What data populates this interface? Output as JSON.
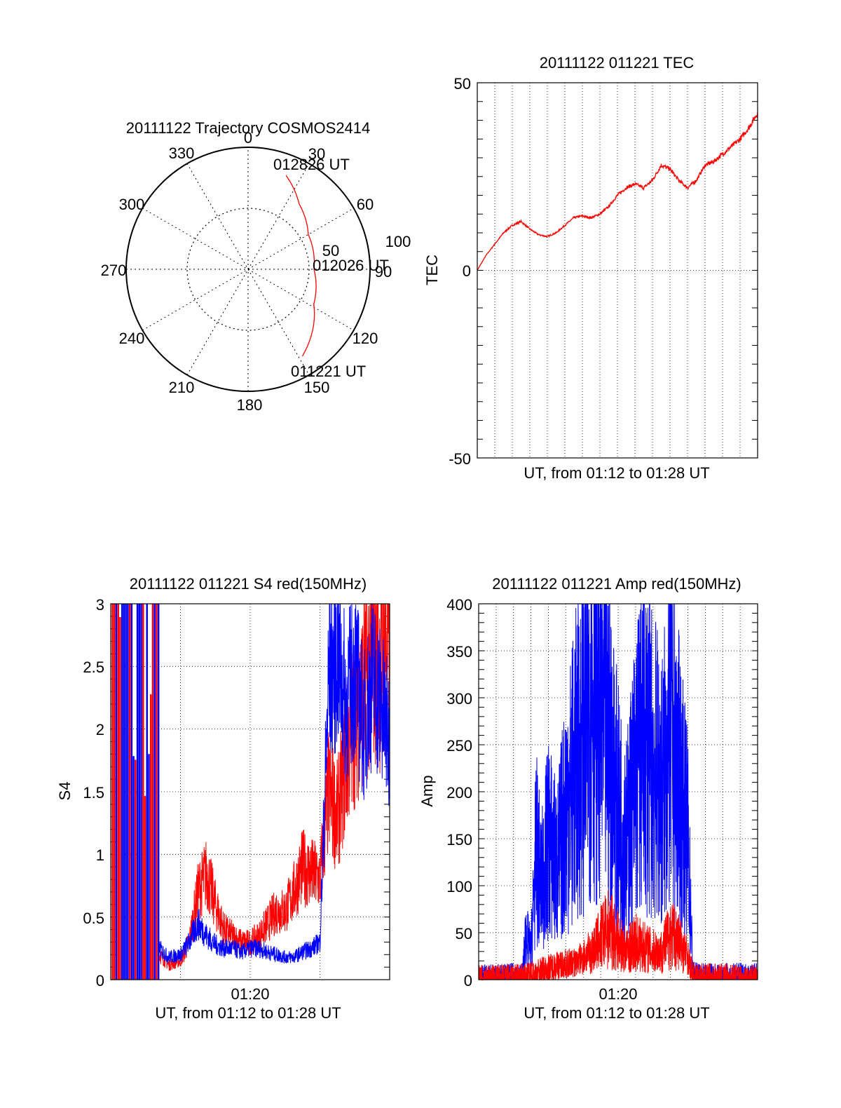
{
  "colors": {
    "red": "#ff0000",
    "blue": "#0000ff",
    "axis": "#000000",
    "grid": "#000000"
  },
  "chart_data": [
    {
      "id": "polar",
      "type": "polar-trajectory",
      "title": "20111122 Trajectory COSMOS2414",
      "azimuth_labels": [
        "0",
        "30",
        "60",
        "90",
        "120",
        "150",
        "180",
        "210",
        "240",
        "270",
        "300",
        "330"
      ],
      "radial_labels": [
        "50",
        "100"
      ],
      "radial_range": [
        0,
        100
      ],
      "grid": true,
      "annotations": [
        "012826 UT",
        "012026 UT",
        "011221 UT"
      ],
      "trajectory": [
        {
          "az": 22,
          "r": 83
        },
        {
          "az": 38,
          "r": 68
        },
        {
          "az": 60,
          "r": 57
        },
        {
          "az": 90,
          "r": 54
        },
        {
          "az": 118,
          "r": 61
        },
        {
          "az": 148,
          "r": 84
        }
      ]
    },
    {
      "id": "tec",
      "type": "line",
      "title": "20111122 011221 TEC",
      "xlabel": "UT, from 01:12 to 01:28 UT",
      "ylabel": "TEC",
      "xlim": [
        0,
        16
      ],
      "ylim": [
        -50,
        50
      ],
      "yticks": [
        "-50",
        "0",
        "50"
      ],
      "grid": true,
      "series": [
        {
          "color": "red",
          "x": [
            0,
            0.5,
            1.0,
            1.5,
            2.0,
            2.5,
            3.0,
            3.5,
            4.0,
            4.5,
            5.0,
            5.5,
            6.0,
            6.5,
            7.0,
            7.5,
            8.0,
            8.5,
            9.0,
            9.5,
            10.0,
            10.5,
            11.0,
            11.5,
            12.0,
            12.5,
            13.0,
            13.5,
            14.0,
            14.5,
            15.0,
            15.5,
            16.0
          ],
          "y": [
            0,
            4,
            7,
            10,
            12,
            13,
            11,
            9.5,
            9,
            10,
            12,
            14,
            14.5,
            14,
            15,
            17,
            20,
            22,
            23,
            22,
            24,
            28,
            27,
            24,
            22,
            24,
            28,
            29,
            31,
            33,
            35,
            38,
            42
          ]
        }
      ]
    },
    {
      "id": "s4",
      "type": "line",
      "title": "20111122 011221 S4 red(150MHz)",
      "xlabel": "UT, from 01:12 to 01:28 UT",
      "ylabel": "S4",
      "xlim": [
        0,
        16
      ],
      "ylim": [
        0,
        3
      ],
      "yticks": [
        "0",
        "0.5",
        "1",
        "1.5",
        "2",
        "2.5",
        "3"
      ],
      "xtick_labels": [
        {
          "x": 8,
          "label": "01:20"
        }
      ],
      "grid": true,
      "series": [
        {
          "color": "red",
          "x": [
            2.8,
            3.3,
            4.0,
            4.5,
            5.0,
            5.5,
            6.0,
            6.5,
            7.0,
            7.5,
            8.0,
            8.5,
            9.0,
            9.5,
            10.0,
            10.5,
            11.0,
            11.5,
            12.0,
            12.5,
            13.0,
            13.5,
            14.0,
            14.5,
            15.0,
            15.5,
            16.0
          ],
          "y": [
            0.2,
            0.12,
            0.15,
            0.3,
            0.7,
            0.85,
            0.6,
            0.4,
            0.35,
            0.3,
            0.3,
            0.35,
            0.45,
            0.55,
            0.55,
            0.7,
            0.9,
            0.85,
            0.8,
            1.5,
            1.3,
            1.75,
            2.1,
            2.3,
            2.6,
            2.5,
            2.8
          ]
        },
        {
          "color": "blue",
          "x": [
            2.8,
            3.3,
            4.0,
            4.5,
            5.0,
            5.5,
            6.0,
            6.5,
            7.0,
            7.5,
            8.0,
            8.5,
            9.0,
            9.5,
            10.0,
            10.5,
            11.0,
            11.5,
            12.0,
            12.5,
            13.0,
            13.5,
            14.0,
            14.5,
            15.0,
            15.5,
            16.0
          ],
          "y": [
            0.25,
            0.18,
            0.2,
            0.3,
            0.45,
            0.35,
            0.28,
            0.25,
            0.25,
            0.22,
            0.25,
            0.25,
            0.22,
            0.2,
            0.18,
            0.18,
            0.22,
            0.25,
            0.3,
            2.4,
            2.6,
            2.2,
            2.5,
            2.0,
            2.4,
            2.2,
            1.9
          ]
        }
      ]
    },
    {
      "id": "amp",
      "type": "line",
      "title": "20111122 011221 Amp red(150MHz)",
      "xlabel": "UT, from 01:12 to 01:28 UT",
      "ylabel": "Amp",
      "xlim": [
        0,
        16
      ],
      "ylim": [
        0,
        400
      ],
      "yticks": [
        "0",
        "50",
        "100",
        "150",
        "200",
        "250",
        "300",
        "350",
        "400"
      ],
      "xtick_labels": [
        {
          "x": 8,
          "label": "01:20"
        }
      ],
      "grid": true,
      "series": [
        {
          "color": "blue",
          "x": [
            0,
            2.5,
            2.7,
            3.0,
            3.3,
            3.6,
            4.0,
            4.5,
            5.0,
            5.5,
            6.0,
            6.5,
            7.0,
            7.5,
            8.0,
            8.5,
            9.0,
            9.5,
            10.0,
            10.5,
            11.0,
            11.5,
            12.0,
            12.3,
            12.6,
            16.0
          ],
          "y": [
            2,
            3,
            50,
            30,
            140,
            100,
            150,
            120,
            180,
            220,
            260,
            320,
            300,
            250,
            180,
            150,
            220,
            260,
            230,
            200,
            260,
            210,
            150,
            5,
            3,
            3
          ]
        },
        {
          "color": "red",
          "x": [
            0,
            2.8,
            3.5,
            4.5,
            5.5,
            6.5,
            7.0,
            7.5,
            8.0,
            8.5,
            9.0,
            9.5,
            10.0,
            10.5,
            11.0,
            11.5,
            12.0,
            12.3,
            16.0
          ],
          "y": [
            0,
            2,
            8,
            15,
            18,
            30,
            45,
            55,
            40,
            30,
            40,
            35,
            30,
            30,
            50,
            40,
            25,
            2,
            0
          ]
        }
      ]
    }
  ]
}
